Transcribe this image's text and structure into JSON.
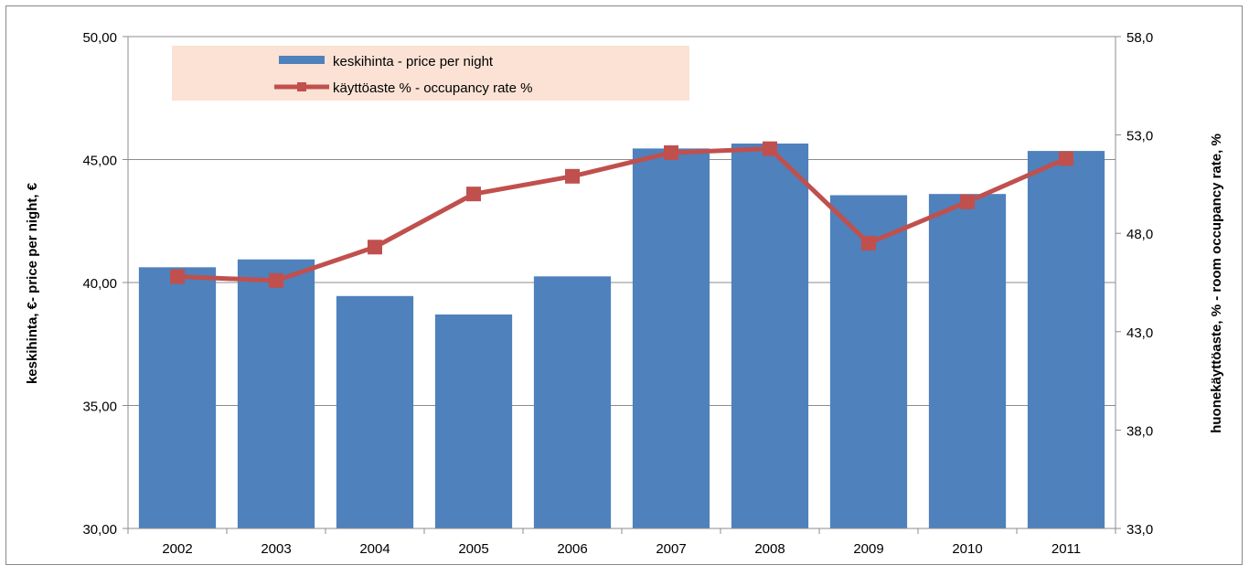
{
  "chart_data": {
    "type": "bar",
    "categories": [
      "2002",
      "2003",
      "2004",
      "2005",
      "2006",
      "2007",
      "2008",
      "2009",
      "2010",
      "2011"
    ],
    "series": [
      {
        "name": "keskihinta -  price per night",
        "type": "bar",
        "axis": "left",
        "color": "#4F81BD",
        "values": [
          40.62,
          40.94,
          39.45,
          38.7,
          40.25,
          45.45,
          45.65,
          43.55,
          43.6,
          45.35
        ]
      },
      {
        "name": "käyttöaste % -  occupancy rate %",
        "type": "line",
        "axis": "right",
        "color": "#C0504D",
        "marker": "square",
        "values": [
          45.8,
          45.6,
          47.3,
          50.0,
          50.9,
          52.1,
          52.3,
          47.5,
          49.6,
          51.8
        ]
      }
    ],
    "ylabel": "keskihinta, €- price per night, €",
    "y2label": "huonekäyttöaste, % - room occupancy rate, %",
    "ylim": [
      30,
      50
    ],
    "y2lim": [
      33,
      58
    ],
    "yticks": [
      "30,00",
      "35,00",
      "40,00",
      "45,00",
      "50,00"
    ],
    "y2ticks": [
      "33,0",
      "38,0",
      "43,0",
      "48,0",
      "53,0",
      "58,0"
    ],
    "grid": true,
    "legend_position": "top-left",
    "legend_background": "#FBE2D5"
  }
}
